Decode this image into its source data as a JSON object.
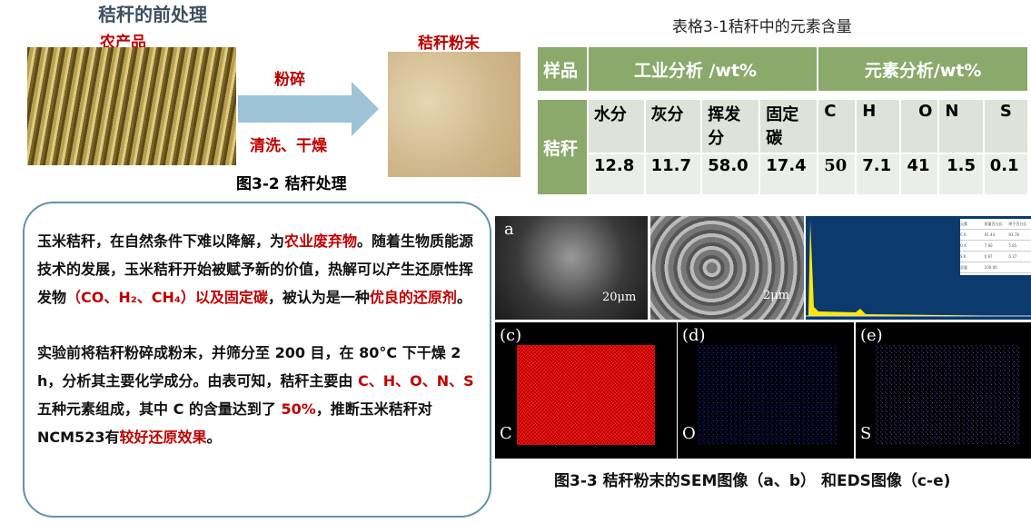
{
  "title": "秸秆的前处理",
  "process": {
    "raw_label": "农产品",
    "step1": "粉碎",
    "step2": "清洗、干燥",
    "product_label": "秸秆粉末",
    "caption": "图3-2 秸秆处理",
    "arrow_color": "#9ec3d6"
  },
  "table": {
    "title": "表格3-1秸秆中的元素含量",
    "sample_header": "样品",
    "industrial_header": "工业分析  /wt%",
    "element_header": "元素分析/wt%",
    "sample": "秸秆",
    "columns": [
      "水分",
      "灰分",
      "挥发分",
      "固定碳",
      "C",
      "H",
      "O",
      "N",
      "S"
    ],
    "values": [
      "12.8",
      "11.7",
      "58.0",
      "17.4",
      "50",
      "7.1",
      "41",
      "1.5",
      "0.1"
    ],
    "header_color": "#8aa96a"
  },
  "text": {
    "p1": [
      {
        "t": "玉米秸秆，在自然条件下难以降解，为"
      },
      {
        "t": "农业废弃物",
        "red": true
      },
      {
        "t": "。随着生物质能源技术的发展，玉米秸秆开始被赋予新的价值，热解可以产生还原性挥发物"
      },
      {
        "t": "（CO、H₂、CH₄）以及固定碳",
        "red": true
      },
      {
        "t": "，被认为是一种"
      },
      {
        "t": "优良的还原剂",
        "red": true
      },
      {
        "t": "。"
      }
    ],
    "p2": [
      {
        "t": "实验前将秸秆粉碎成粉末，并筛分至 200 目，在 80°C 下干燥 2 h，分析其主要化学成分。由表可知，秸秆主要由 "
      },
      {
        "t": "C、H、O、N、S",
        "red": true
      },
      {
        "t": " 五种元素组成，其中 C 的含量达到了 "
      },
      {
        "t": "50%",
        "red": true
      },
      {
        "t": "，推断玉米秸秆对NCM523有"
      },
      {
        "t": "较好还原效果",
        "red": true
      },
      {
        "t": "。"
      }
    ]
  },
  "figures": {
    "a": "a",
    "a_scale": "20μm",
    "b_scale": "2μm",
    "c": "(c)",
    "c_el": "C",
    "d": "(d)",
    "d_el": "O",
    "e": "(e)",
    "e_el": "S",
    "eds_table": {
      "headers": [
        "元素",
        "质量百分比",
        "原子百分比"
      ],
      "rows": [
        [
          "C K",
          "91.44",
          "93.78"
        ],
        [
          "O K",
          "7.60",
          "5.85"
        ],
        [
          "S K",
          "0.97",
          "0.37"
        ],
        [
          "总量",
          "100.00",
          ""
        ]
      ]
    },
    "caption": "图3-3 秸秆粉末的SEM图像（a、b） 和EDS图像（c-e)"
  }
}
